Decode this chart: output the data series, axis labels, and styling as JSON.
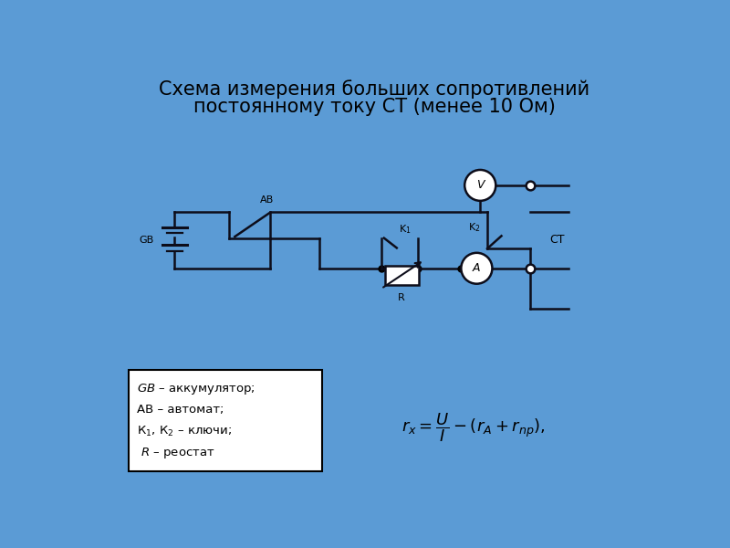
{
  "title_line1": "Схема измерения больших сопротивлений",
  "title_line2": "постоянному току СТ (менее 10 Ом)",
  "bg_color": "#5b9bd5",
  "line_color": "#0d0d1a",
  "title_fontsize": 15,
  "label_fontsize": 8,
  "legend_items": [
    "$GB$ – аккумулятор;",
    "АВ – автомат;",
    "К$_1$, К$_2$ – ключи;",
    " $R$ – реостат"
  ]
}
